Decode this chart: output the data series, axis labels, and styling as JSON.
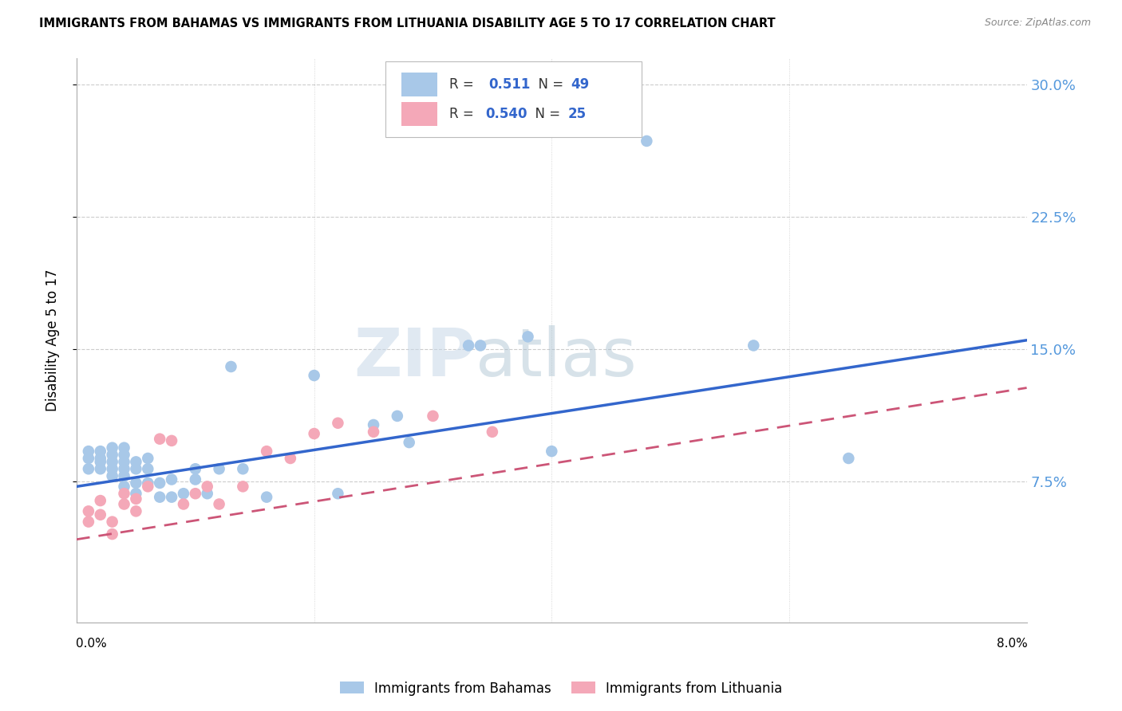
{
  "title": "IMMIGRANTS FROM BAHAMAS VS IMMIGRANTS FROM LITHUANIA DISABILITY AGE 5 TO 17 CORRELATION CHART",
  "source": "Source: ZipAtlas.com",
  "ylabel": "Disability Age 5 to 17",
  "yticks": [
    0.075,
    0.15,
    0.225,
    0.3
  ],
  "ytick_labels": [
    "7.5%",
    "15.0%",
    "22.5%",
    "30.0%"
  ],
  "xlim": [
    0.0,
    0.08
  ],
  "ylim": [
    -0.005,
    0.315
  ],
  "R_bahamas": 0.511,
  "N_bahamas": 49,
  "R_lithuania": 0.54,
  "N_lithuania": 25,
  "color_bahamas": "#a8c8e8",
  "color_lithuania": "#f4a8b8",
  "color_bahamas_line": "#3366cc",
  "color_lithuania_line": "#cc5577",
  "watermark_zip": "ZIP",
  "watermark_atlas": "atlas",
  "bahamas_x": [
    0.001,
    0.001,
    0.001,
    0.002,
    0.002,
    0.002,
    0.002,
    0.003,
    0.003,
    0.003,
    0.003,
    0.003,
    0.004,
    0.004,
    0.004,
    0.004,
    0.004,
    0.004,
    0.005,
    0.005,
    0.005,
    0.005,
    0.006,
    0.006,
    0.006,
    0.007,
    0.007,
    0.008,
    0.008,
    0.009,
    0.01,
    0.01,
    0.011,
    0.012,
    0.013,
    0.014,
    0.016,
    0.02,
    0.022,
    0.025,
    0.027,
    0.028,
    0.033,
    0.034,
    0.038,
    0.04,
    0.048,
    0.057,
    0.065
  ],
  "bahamas_y": [
    0.082,
    0.088,
    0.092,
    0.082,
    0.086,
    0.088,
    0.092,
    0.078,
    0.082,
    0.086,
    0.09,
    0.094,
    0.072,
    0.078,
    0.082,
    0.086,
    0.09,
    0.094,
    0.068,
    0.074,
    0.082,
    0.086,
    0.074,
    0.082,
    0.088,
    0.066,
    0.074,
    0.066,
    0.076,
    0.068,
    0.076,
    0.082,
    0.068,
    0.082,
    0.14,
    0.082,
    0.066,
    0.135,
    0.068,
    0.107,
    0.112,
    0.097,
    0.152,
    0.152,
    0.157,
    0.092,
    0.268,
    0.152,
    0.088
  ],
  "lithuania_x": [
    0.001,
    0.001,
    0.002,
    0.002,
    0.003,
    0.003,
    0.004,
    0.004,
    0.005,
    0.005,
    0.006,
    0.007,
    0.008,
    0.009,
    0.01,
    0.011,
    0.012,
    0.014,
    0.016,
    0.018,
    0.02,
    0.022,
    0.025,
    0.03,
    0.035
  ],
  "lithuania_y": [
    0.052,
    0.058,
    0.056,
    0.064,
    0.045,
    0.052,
    0.062,
    0.068,
    0.058,
    0.065,
    0.072,
    0.099,
    0.098,
    0.062,
    0.068,
    0.072,
    0.062,
    0.072,
    0.092,
    0.088,
    0.102,
    0.108,
    0.103,
    0.112,
    0.103
  ],
  "bah_trend_x0": 0.0,
  "bah_trend_y0": 0.072,
  "bah_trend_x1": 0.08,
  "bah_trend_y1": 0.155,
  "lith_trend_x0": 0.0,
  "lith_trend_y0": 0.042,
  "lith_trend_x1": 0.08,
  "lith_trend_y1": 0.128
}
